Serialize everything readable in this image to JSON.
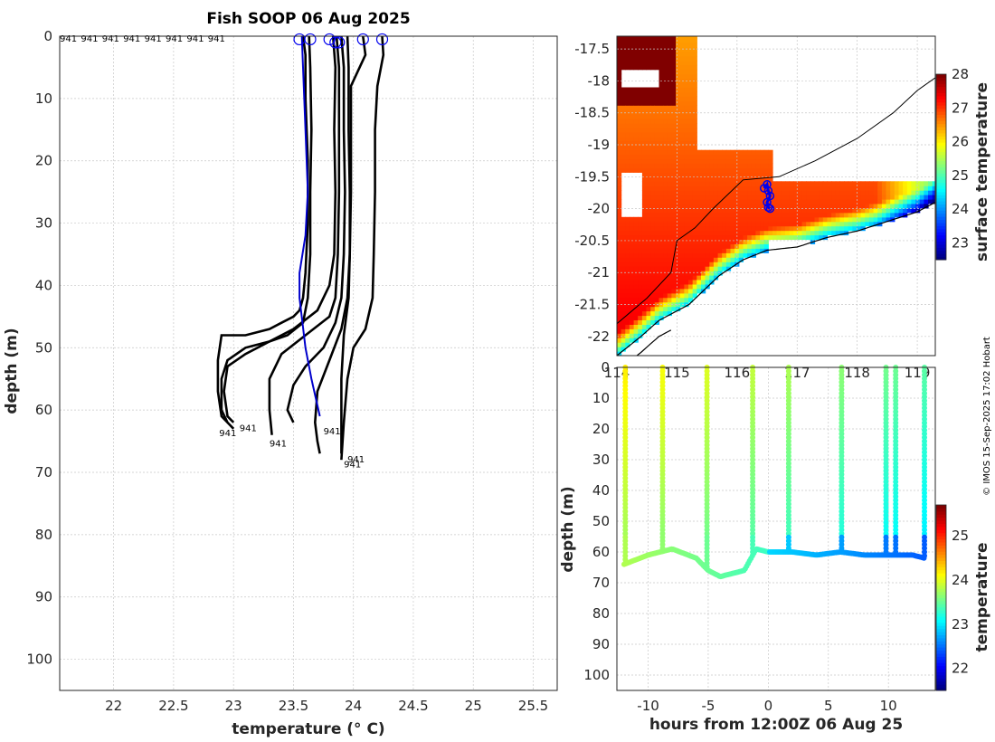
{
  "credit": "© IMOS 15-Sep-2025 17:02 Hobart",
  "chart_data": [
    {
      "type": "line",
      "title": "Fish SOOP 06 Aug 2025",
      "xlabel": "temperature (° C)",
      "ylabel": "depth (m)",
      "xlim": [
        21.55,
        25.7
      ],
      "ylim": [
        105,
        0
      ],
      "xticks": [
        22,
        22.5,
        23,
        23.5,
        24,
        24.5,
        25,
        25.5
      ],
      "yticks": [
        0,
        10,
        20,
        30,
        40,
        50,
        60,
        70,
        80,
        90,
        100
      ],
      "grid": true,
      "top_labels": [
        "941",
        "941",
        "941",
        "941",
        "941",
        "941",
        "941",
        "941"
      ],
      "end_labels": [
        "941",
        "941",
        "941",
        "941",
        "941",
        "941"
      ],
      "series": [
        {
          "color": "#000000",
          "x": [
            23.58,
            23.6,
            23.6,
            23.62,
            23.62,
            23.6,
            23.58,
            23.55,
            23.5,
            23.4,
            23.3,
            23.1,
            22.9,
            22.87,
            22.87,
            22.9,
            22.95,
            23.0
          ],
          "y": [
            0,
            3,
            10,
            20,
            30,
            38,
            42,
            44,
            45,
            46,
            47,
            48,
            48,
            52,
            57,
            61,
            62,
            63
          ]
        },
        {
          "color": "#000000",
          "x": [
            23.63,
            23.64,
            23.65,
            23.64,
            23.64,
            23.62,
            23.58,
            23.45,
            23.3,
            23.1,
            22.95,
            22.9,
            22.9,
            22.95
          ],
          "y": [
            0,
            5,
            15,
            25,
            35,
            42,
            46,
            48,
            49,
            50,
            52,
            55,
            60,
            62
          ]
        },
        {
          "color": "#000000",
          "x": [
            23.83,
            23.85,
            23.84,
            23.85,
            23.84,
            23.8,
            23.7,
            23.5,
            23.3,
            23.1,
            22.95,
            22.92,
            22.95,
            23.0
          ],
          "y": [
            0,
            5,
            15,
            25,
            35,
            40,
            44,
            47,
            49,
            51,
            53,
            57,
            61,
            62
          ]
        },
        {
          "color": "#000000",
          "x": [
            23.86,
            23.88,
            23.88,
            23.88,
            23.87,
            23.85,
            23.8,
            23.6,
            23.4,
            23.3,
            23.3,
            23.32
          ],
          "y": [
            0,
            5,
            15,
            25,
            35,
            42,
            45,
            48,
            51,
            55,
            60,
            64
          ]
        },
        {
          "color": "#000000",
          "x": [
            23.9,
            23.92,
            23.92,
            23.93,
            23.92,
            23.9,
            23.85,
            23.75,
            23.6,
            23.5,
            23.45,
            23.5
          ],
          "y": [
            0,
            5,
            15,
            25,
            35,
            42,
            46,
            50,
            53,
            56,
            60,
            62
          ]
        },
        {
          "color": "#000000",
          "x": [
            23.95,
            23.96,
            23.96,
            23.97,
            23.97,
            23.95,
            23.9,
            23.8,
            23.7,
            23.68,
            23.7,
            23.72
          ],
          "y": [
            0,
            5,
            15,
            25,
            35,
            42,
            47,
            52,
            57,
            62,
            65,
            67
          ]
        },
        {
          "color": "#000000",
          "x": [
            24.08,
            24.1,
            23.98,
            23.98,
            23.98,
            23.97,
            23.96,
            23.92,
            23.9,
            23.9,
            23.9
          ],
          "y": [
            0,
            3,
            8,
            15,
            25,
            35,
            42,
            48,
            55,
            62,
            67
          ]
        },
        {
          "color": "#000000",
          "x": [
            24.24,
            24.25,
            24.2,
            24.18,
            24.18,
            24.17,
            24.16,
            24.1,
            24.0,
            23.95,
            23.92,
            23.9
          ],
          "y": [
            0,
            3,
            8,
            15,
            25,
            35,
            42,
            47,
            50,
            55,
            62,
            68
          ]
        },
        {
          "color": "#0000cc",
          "x": [
            23.57,
            23.58,
            23.6,
            23.62,
            23.6,
            23.55,
            23.55,
            23.6,
            23.65,
            23.72
          ],
          "y": [
            0,
            5,
            15,
            25,
            32,
            38,
            42,
            50,
            55,
            61
          ]
        }
      ],
      "surface_points": {
        "x": [
          23.55,
          23.64,
          23.8,
          23.85,
          23.88,
          24.08,
          24.24
        ],
        "y": [
          0.5,
          0.5,
          0.5,
          1,
          1,
          0.5,
          0.5
        ]
      }
    },
    {
      "type": "heatmap",
      "colorbar_label": "surface temperature",
      "xlim": [
        114,
        119.3
      ],
      "ylim": [
        -22.3,
        -17.3
      ],
      "xticks": [
        "114",
        "115",
        "116",
        "117",
        "118",
        "119"
      ],
      "yticks": [
        -17.5,
        -18,
        -18.5,
        -19,
        -19.5,
        -20,
        -20.5,
        -21,
        -21.5,
        -22
      ],
      "colorbar_ticks": [
        23,
        24,
        25,
        26,
        27,
        28
      ],
      "colorbar_range": [
        22.5,
        28
      ],
      "track_lon": [
        116.45,
        116.5,
        116.52,
        116.55,
        116.5,
        116.52,
        116.55
      ],
      "track_lat": [
        -19.68,
        -19.62,
        -19.72,
        -19.8,
        -19.9,
        -19.98,
        -20.0
      ]
    },
    {
      "type": "scatter",
      "xlabel": "hours from 12:00Z 06 Aug 25",
      "ylabel": "depth (m)",
      "colorbar_label": "temperature",
      "xlim": [
        -12.6,
        13.9
      ],
      "ylim": [
        105,
        0
      ],
      "xticks": [
        -10,
        -5,
        0,
        5,
        10
      ],
      "yticks": [
        0,
        10,
        20,
        30,
        40,
        50,
        60,
        70,
        80,
        90,
        100
      ],
      "colorbar_ticks": [
        22,
        23,
        24,
        25
      ],
      "colorbar_range": [
        21.5,
        25.7
      ],
      "casts": [
        -11.9,
        -8.8,
        -5.1,
        -1.3,
        1.7,
        6.1,
        9.8,
        10.6,
        13.0
      ],
      "bottom": {
        "x": [
          -12,
          -10,
          -8,
          -6,
          -5,
          -4,
          -2,
          -1,
          0,
          2,
          4,
          6,
          8,
          10,
          12,
          13
        ],
        "y": [
          64,
          61,
          59,
          62,
          66,
          68,
          66,
          59,
          60,
          60,
          61,
          60,
          61,
          61,
          61,
          62
        ]
      }
    }
  ]
}
